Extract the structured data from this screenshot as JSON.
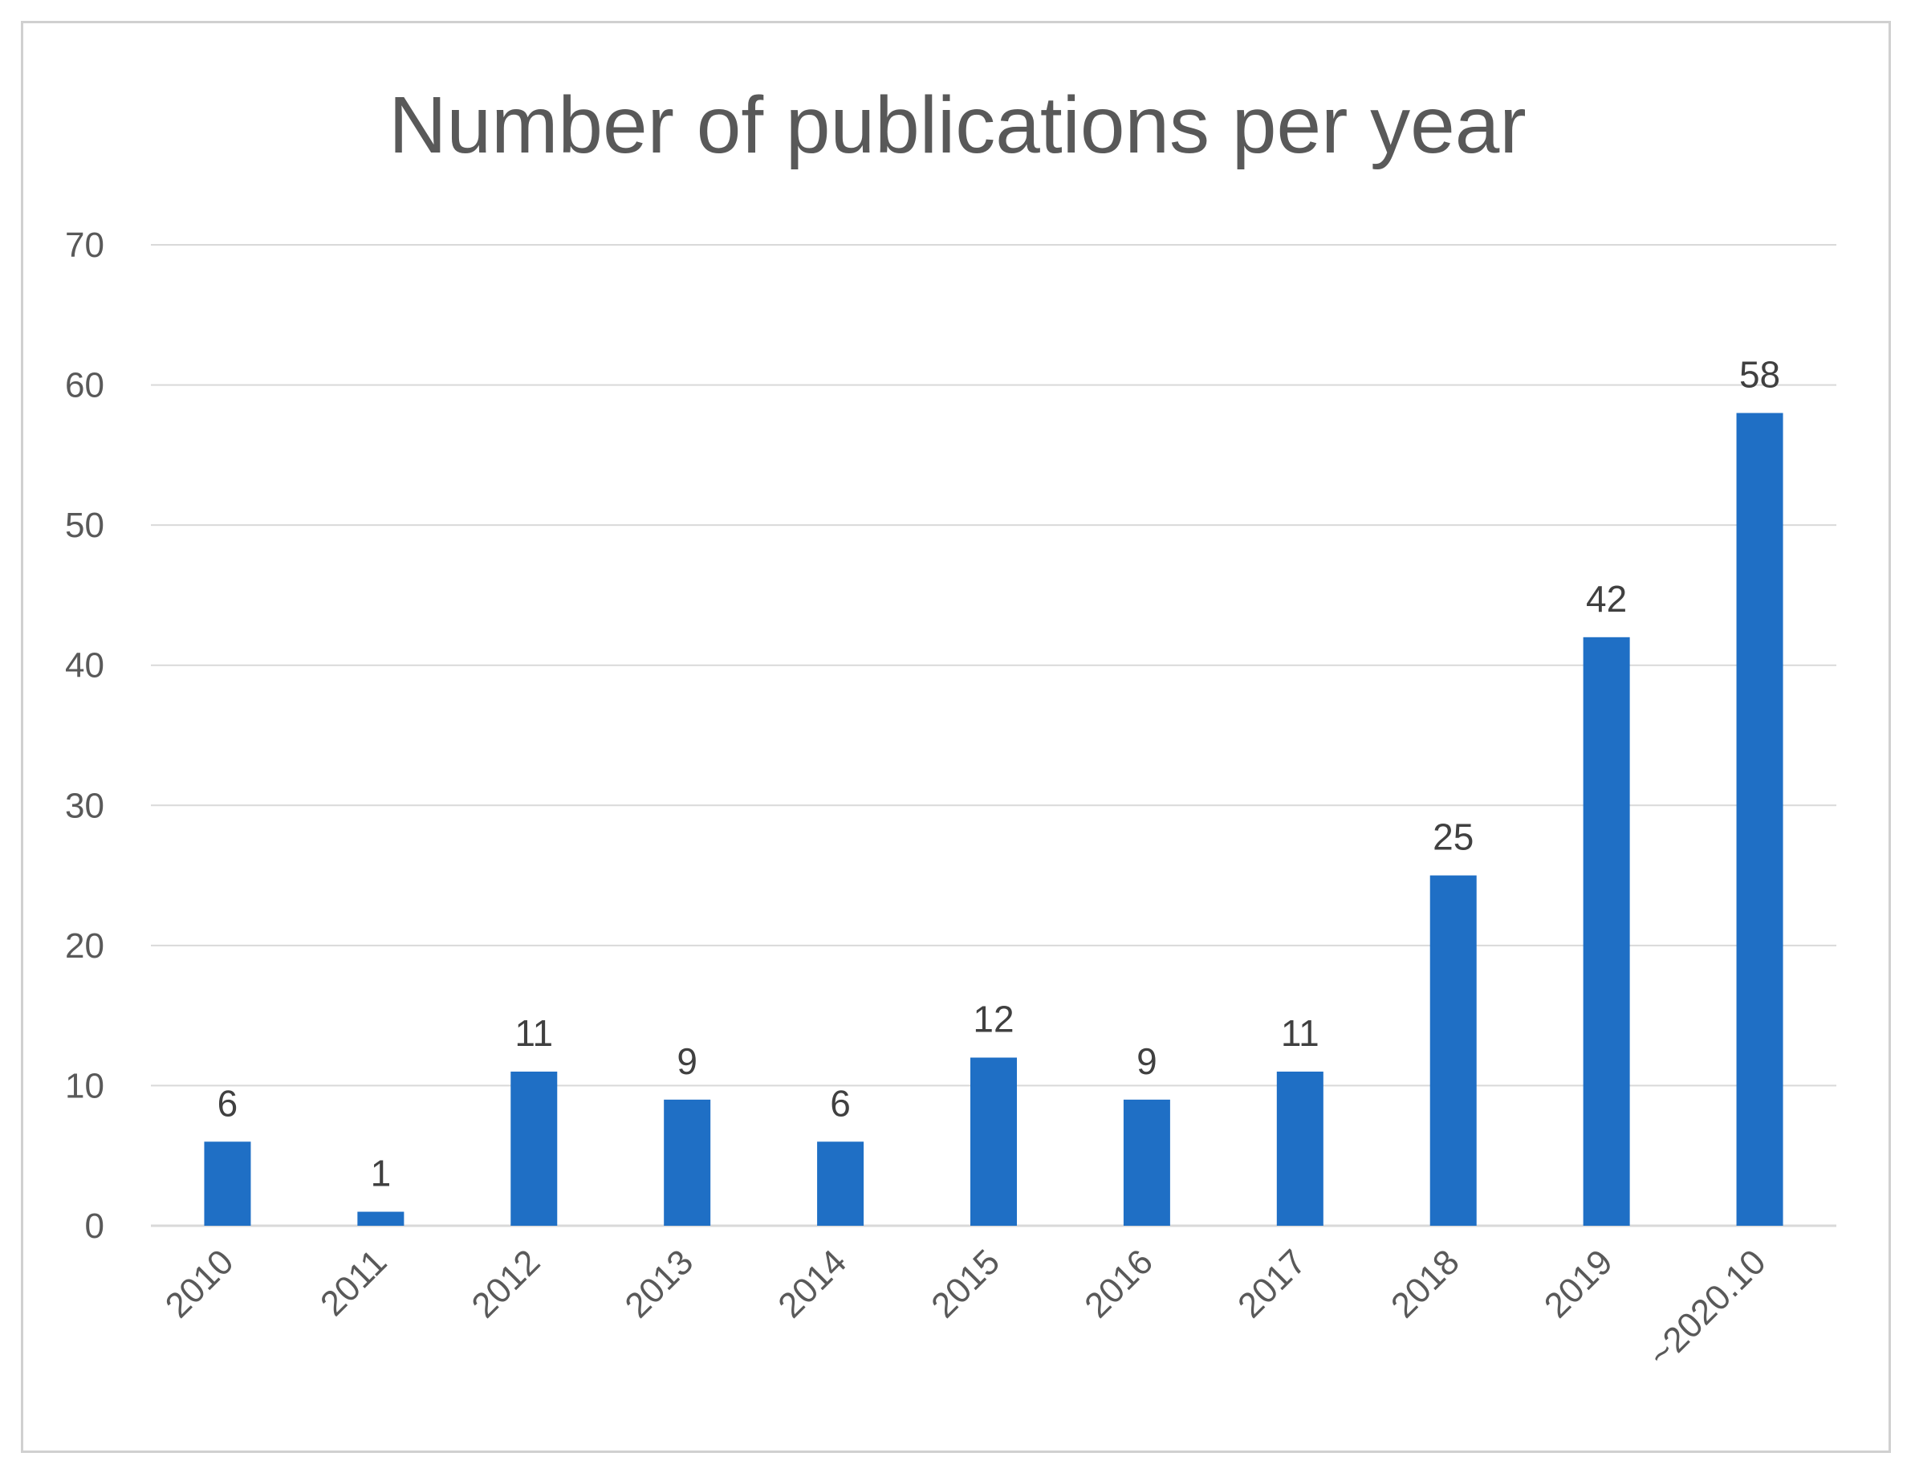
{
  "chart_data": {
    "type": "bar",
    "title": "Number of publications per year",
    "xlabel": "",
    "ylabel": "",
    "categories": [
      "2010",
      "2011",
      "2012",
      "2013",
      "2014",
      "2015",
      "2016",
      "2017",
      "2018",
      "2019",
      "~2020.10"
    ],
    "values": [
      6,
      1,
      11,
      9,
      6,
      12,
      9,
      11,
      25,
      42,
      58
    ],
    "data_labels": [
      "6",
      "1",
      "11",
      "9",
      "6",
      "12",
      "9",
      "11",
      "25",
      "42",
      "58"
    ],
    "ylim": [
      0,
      70
    ],
    "yticks": [
      0,
      10,
      20,
      30,
      40,
      50,
      60,
      70
    ],
    "ytick_labels": [
      "0",
      "10",
      "20",
      "30",
      "40",
      "50",
      "60",
      "70"
    ],
    "grid": true,
    "legend": "none",
    "colors": {
      "bar": "#1f6fc5",
      "grid": "#d9d9d9",
      "axis": "#d9d9d9",
      "text": "#595959"
    }
  }
}
